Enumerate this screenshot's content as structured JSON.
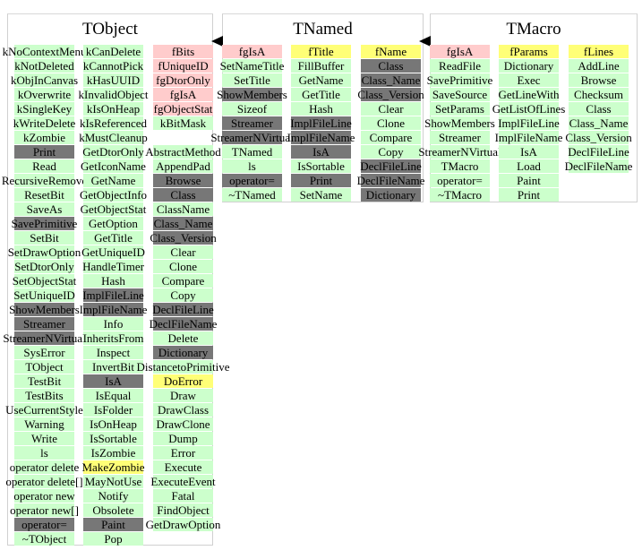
{
  "classes": [
    {
      "title": "TObject",
      "columns": [
        [
          [
            "kNoContextMenu",
            "g"
          ],
          [
            "kNotDeleted",
            "g"
          ],
          [
            "kObjInCanvas",
            "g"
          ],
          [
            "kOverwrite",
            "g"
          ],
          [
            "kSingleKey",
            "g"
          ],
          [
            "kWriteDelete",
            "g"
          ],
          [
            "kZombie",
            "g"
          ],
          [
            "Print",
            "d"
          ],
          [
            "Read",
            "g"
          ],
          [
            "RecursiveRemove",
            "g"
          ],
          [
            "ResetBit",
            "g"
          ],
          [
            "SaveAs",
            "g"
          ],
          [
            "SavePrimitive",
            "d"
          ],
          [
            "SetBit",
            "g"
          ],
          [
            "SetDrawOption",
            "g"
          ],
          [
            "SetDtorOnly",
            "g"
          ],
          [
            "SetObjectStat",
            "g"
          ],
          [
            "SetUniqueID",
            "g"
          ],
          [
            "ShowMembers",
            "d"
          ],
          [
            "Streamer",
            "d"
          ],
          [
            "StreamerNVirtual",
            "d"
          ],
          [
            "SysError",
            "g"
          ],
          [
            "TObject",
            "g"
          ],
          [
            "TestBit",
            "g"
          ],
          [
            "TestBits",
            "g"
          ],
          [
            "UseCurrentStyle",
            "g"
          ],
          [
            "Warning",
            "g"
          ],
          [
            "Write",
            "g"
          ],
          [
            "ls",
            "g"
          ],
          [
            "operator delete",
            "g"
          ],
          [
            "operator delete[]",
            "g"
          ],
          [
            "operator new",
            "g"
          ],
          [
            "operator new[]",
            "g"
          ],
          [
            "operator=",
            "d"
          ],
          [
            "~TObject",
            "g"
          ]
        ],
        [
          [
            "kCanDelete",
            "g"
          ],
          [
            "kCannotPick",
            "g"
          ],
          [
            "kHasUUID",
            "g"
          ],
          [
            "kInvalidObject",
            "g"
          ],
          [
            "kIsOnHeap",
            "g"
          ],
          [
            "kIsReferenced",
            "g"
          ],
          [
            "kMustCleanup",
            "g"
          ],
          [
            "GetDtorOnly",
            "g"
          ],
          [
            "GetIconName",
            "g"
          ],
          [
            "GetName",
            "g"
          ],
          [
            "GetObjectInfo",
            "g"
          ],
          [
            "GetObjectStat",
            "g"
          ],
          [
            "GetOption",
            "g"
          ],
          [
            "GetTitle",
            "g"
          ],
          [
            "GetUniqueID",
            "g"
          ],
          [
            "HandleTimer",
            "g"
          ],
          [
            "Hash",
            "g"
          ],
          [
            "ImplFileLine",
            "d"
          ],
          [
            "ImplFileName",
            "d"
          ],
          [
            "Info",
            "g"
          ],
          [
            "InheritsFrom",
            "g"
          ],
          [
            "Inspect",
            "g"
          ],
          [
            "InvertBit",
            "g"
          ],
          [
            "IsA",
            "d"
          ],
          [
            "IsEqual",
            "g"
          ],
          [
            "IsFolder",
            "g"
          ],
          [
            "IsOnHeap",
            "g"
          ],
          [
            "IsSortable",
            "g"
          ],
          [
            "IsZombie",
            "g"
          ],
          [
            "MakeZombie",
            "y"
          ],
          [
            "MayNotUse",
            "g"
          ],
          [
            "Notify",
            "g"
          ],
          [
            "Obsolete",
            "g"
          ],
          [
            "Paint",
            "d"
          ],
          [
            "Pop",
            "g"
          ]
        ],
        [
          [
            "fBits",
            "p"
          ],
          [
            "fUniqueID",
            "p"
          ],
          [
            "fgDtorOnly",
            "p"
          ],
          [
            "fgIsA",
            "p"
          ],
          [
            "fgObjectStat",
            "p"
          ],
          [
            "kBitMask",
            "g"
          ],
          null,
          [
            "AbstractMethod",
            "g"
          ],
          [
            "AppendPad",
            "g"
          ],
          [
            "Browse",
            "d"
          ],
          [
            "Class",
            "d"
          ],
          [
            "ClassName",
            "g"
          ],
          [
            "Class_Name",
            "d"
          ],
          [
            "Class_Version",
            "d"
          ],
          [
            "Clear",
            "g"
          ],
          [
            "Clone",
            "g"
          ],
          [
            "Compare",
            "g"
          ],
          [
            "Copy",
            "g"
          ],
          [
            "DeclFileLine",
            "d"
          ],
          [
            "DeclFileName",
            "d"
          ],
          [
            "Delete",
            "g"
          ],
          [
            "Dictionary",
            "d"
          ],
          [
            "DistancetoPrimitive",
            "g"
          ],
          [
            "DoError",
            "y"
          ],
          [
            "Draw",
            "g"
          ],
          [
            "DrawClass",
            "g"
          ],
          [
            "DrawClone",
            "g"
          ],
          [
            "Dump",
            "g"
          ],
          [
            "Error",
            "g"
          ],
          [
            "Execute",
            "g"
          ],
          [
            "ExecuteEvent",
            "g"
          ],
          [
            "Fatal",
            "g"
          ],
          [
            "FindObject",
            "g"
          ],
          [
            "GetDrawOption",
            "g"
          ]
        ]
      ]
    },
    {
      "title": "TNamed",
      "columns": [
        [
          [
            "fgIsA",
            "p"
          ],
          [
            "SetNameTitle",
            "g"
          ],
          [
            "SetTitle",
            "g"
          ],
          [
            "ShowMembers",
            "d"
          ],
          [
            "Sizeof",
            "g"
          ],
          [
            "Streamer",
            "d"
          ],
          [
            "StreamerNVirtual",
            "d"
          ],
          [
            "TNamed",
            "g"
          ],
          [
            "ls",
            "g"
          ],
          [
            "operator=",
            "d"
          ],
          [
            "~TNamed",
            "g"
          ]
        ],
        [
          [
            "fTitle",
            "y"
          ],
          [
            "FillBuffer",
            "g"
          ],
          [
            "GetName",
            "g"
          ],
          [
            "GetTitle",
            "g"
          ],
          [
            "Hash",
            "g"
          ],
          [
            "ImplFileLine",
            "d"
          ],
          [
            "ImplFileName",
            "d"
          ],
          [
            "IsA",
            "d"
          ],
          [
            "IsSortable",
            "g"
          ],
          [
            "Print",
            "d"
          ],
          [
            "SetName",
            "g"
          ]
        ],
        [
          [
            "fName",
            "y"
          ],
          [
            "Class",
            "d"
          ],
          [
            "Class_Name",
            "d"
          ],
          [
            "Class_Version",
            "d"
          ],
          [
            "Clear",
            "g"
          ],
          [
            "Clone",
            "g"
          ],
          [
            "Compare",
            "g"
          ],
          [
            "Copy",
            "g"
          ],
          [
            "DeclFileLine",
            "d"
          ],
          [
            "DeclFileName",
            "d"
          ],
          [
            "Dictionary",
            "d"
          ]
        ]
      ]
    },
    {
      "title": "TMacro",
      "columns": [
        [
          [
            "fgIsA",
            "p"
          ],
          [
            "ReadFile",
            "g"
          ],
          [
            "SavePrimitive",
            "g"
          ],
          [
            "SaveSource",
            "g"
          ],
          [
            "SetParams",
            "g"
          ],
          [
            "ShowMembers",
            "g"
          ],
          [
            "Streamer",
            "g"
          ],
          [
            "StreamerNVirtual",
            "g"
          ],
          [
            "TMacro",
            "g"
          ],
          [
            "operator=",
            "g"
          ],
          [
            "~TMacro",
            "g"
          ]
        ],
        [
          [
            "fParams",
            "y"
          ],
          [
            "Dictionary",
            "g"
          ],
          [
            "Exec",
            "g"
          ],
          [
            "GetLineWith",
            "g"
          ],
          [
            "GetListOfLines",
            "g"
          ],
          [
            "ImplFileLine",
            "g"
          ],
          [
            "ImplFileName",
            "g"
          ],
          [
            "IsA",
            "g"
          ],
          [
            "Load",
            "g"
          ],
          [
            "Paint",
            "g"
          ],
          [
            "Print",
            "g"
          ]
        ],
        [
          [
            "fLines",
            "y"
          ],
          [
            "AddLine",
            "g"
          ],
          [
            "Browse",
            "g"
          ],
          [
            "Checksum",
            "g"
          ],
          [
            "Class",
            "g"
          ],
          [
            "Class_Name",
            "g"
          ],
          [
            "Class_Version",
            "g"
          ],
          [
            "DeclFileLine",
            "g"
          ],
          [
            "DeclFileName",
            "g"
          ]
        ]
      ]
    }
  ],
  "inheritance": [
    {
      "from": "TNamed",
      "to": "TObject"
    },
    {
      "from": "TMacro",
      "to": "TNamed"
    }
  ]
}
